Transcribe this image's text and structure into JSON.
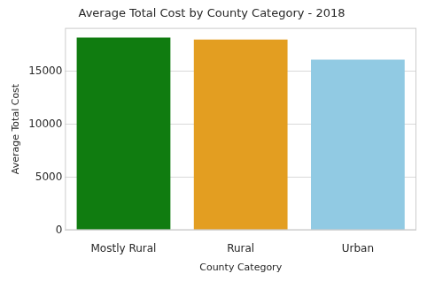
{
  "chart_data": {
    "type": "bar",
    "title": "Average Total Cost by County Category - 2018",
    "x_label": "County Category",
    "y_label": "Average Total Cost",
    "categories": [
      "Mostly Rural",
      "Rural",
      "Urban"
    ],
    "values": [
      18200,
      18000,
      16100
    ],
    "colors": [
      "#107c10",
      "#e39e21",
      "#91cae3"
    ],
    "ylim": [
      0,
      19100
    ],
    "yticks": [
      0,
      5000,
      10000,
      15000
    ],
    "grid": true
  }
}
